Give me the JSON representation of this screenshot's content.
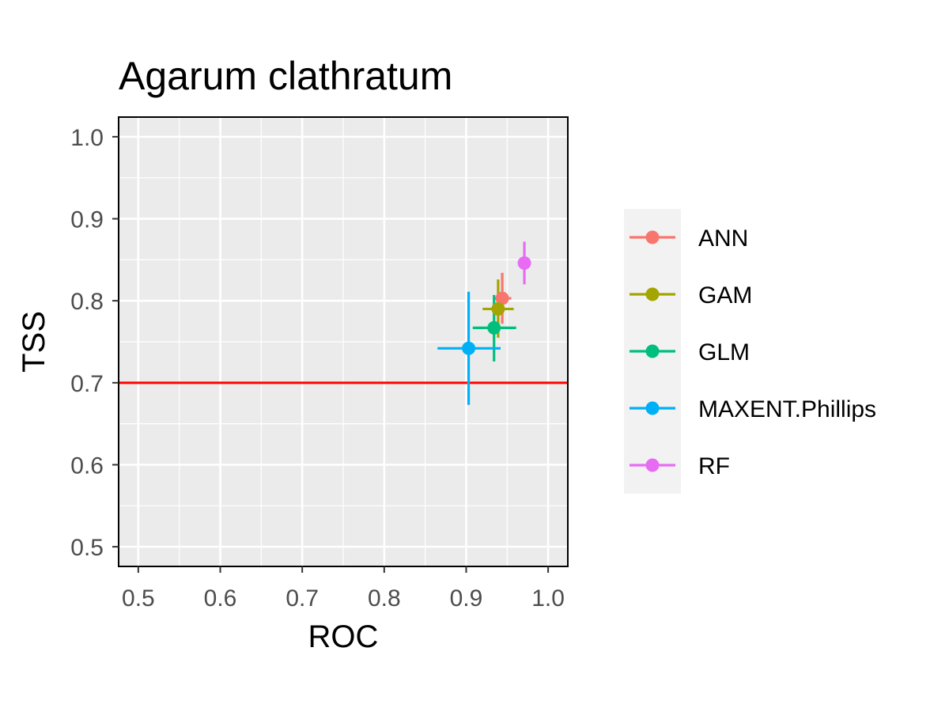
{
  "chart_data": {
    "type": "scatter",
    "title": "Agarum clathratum",
    "xlabel": "ROC",
    "ylabel": "TSS",
    "xlim": [
      0.476,
      1.024
    ],
    "ylim": [
      0.476,
      1.024
    ],
    "x_ticks": [
      "0.5",
      "0.6",
      "0.7",
      "0.8",
      "0.9",
      "1.0"
    ],
    "y_ticks": [
      "0.5",
      "0.6",
      "0.7",
      "0.8",
      "0.9",
      "1.0"
    ],
    "grid": true,
    "legend_position": "right",
    "threshold_line": {
      "y": 0.7,
      "color": "#ff0000"
    },
    "series": [
      {
        "name": "ANN",
        "color": "#F8766D",
        "x": 0.944,
        "y": 0.803,
        "x_err": [
          0.934,
          0.955
        ],
        "y_err": [
          0.772,
          0.834
        ]
      },
      {
        "name": "GAM",
        "color": "#A3A500",
        "x": 0.939,
        "y": 0.79,
        "x_err": [
          0.92,
          0.958
        ],
        "y_err": [
          0.755,
          0.826
        ]
      },
      {
        "name": "GLM",
        "color": "#00BF7D",
        "x": 0.934,
        "y": 0.767,
        "x_err": [
          0.908,
          0.961
        ],
        "y_err": [
          0.726,
          0.807
        ]
      },
      {
        "name": "MAXENT.Phillips",
        "color": "#00B0F6",
        "x": 0.903,
        "y": 0.742,
        "x_err": [
          0.865,
          0.942
        ],
        "y_err": [
          0.673,
          0.811
        ]
      },
      {
        "name": "RF",
        "color": "#E76BF3",
        "x": 0.971,
        "y": 0.846,
        "x_err": [
          0.968,
          0.974
        ],
        "y_err": [
          0.82,
          0.872
        ]
      }
    ]
  }
}
